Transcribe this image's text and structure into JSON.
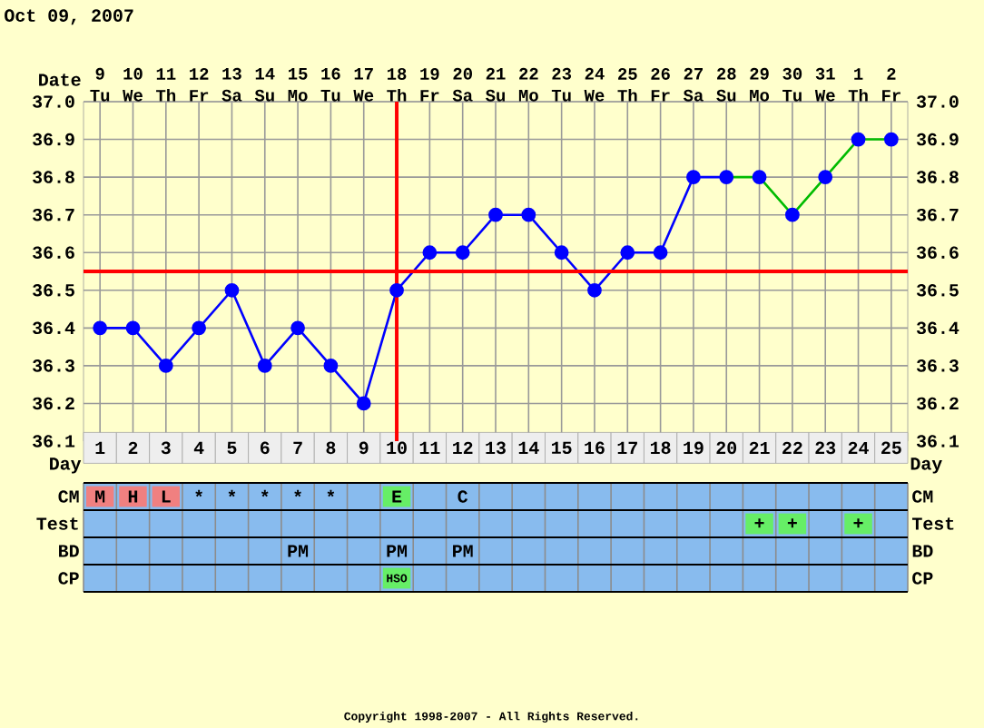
{
  "chart_data": [
    {
      "type": "line",
      "title": "Oct 09, 2007",
      "xlabel": "Day",
      "x2label": "Date",
      "xlim": [
        0.5,
        25.5
      ],
      "xticks": [
        1,
        2,
        3,
        4,
        5,
        6,
        7,
        8,
        9,
        10,
        11,
        12,
        13,
        14,
        15,
        16,
        17,
        18,
        19,
        20,
        21,
        22,
        23,
        24,
        25
      ],
      "x2lim": [
        "2007-10-08T12:00",
        "2007-11-02T12:00"
      ],
      "x2ticks": [
        {
          "value": "2007-10-09",
          "label": "9 Tu"
        },
        {
          "value": "2007-10-10",
          "label": "10 We"
        },
        {
          "value": "2007-10-11",
          "label": "11 Th"
        },
        {
          "value": "2007-10-12",
          "label": "12 Fr"
        },
        {
          "value": "2007-10-13",
          "label": "13 Sa"
        },
        {
          "value": "2007-10-14",
          "label": "14 Su"
        },
        {
          "value": "2007-10-15",
          "label": "15 Mo"
        },
        {
          "value": "2007-10-16",
          "label": "16 Tu"
        },
        {
          "value": "2007-10-17",
          "label": "17 We"
        },
        {
          "value": "2007-10-18",
          "label": "18 Th"
        },
        {
          "value": "2007-10-19",
          "label": "19 Fr"
        },
        {
          "value": "2007-10-20",
          "label": "20 Sa"
        },
        {
          "value": "2007-10-21",
          "label": "21 Su"
        },
        {
          "value": "2007-10-22",
          "label": "22 Mo"
        },
        {
          "value": "2007-10-23",
          "label": "23 Tu"
        },
        {
          "value": "2007-10-24",
          "label": "24 We"
        },
        {
          "value": "2007-10-25",
          "label": "25 Th"
        },
        {
          "value": "2007-10-26",
          "label": "26 Fr"
        },
        {
          "value": "2007-10-27",
          "label": "27 Sa"
        },
        {
          "value": "2007-10-28",
          "label": "28 Su"
        },
        {
          "value": "2007-10-29",
          "label": "29 Mo"
        },
        {
          "value": "2007-10-30",
          "label": "30 Tu"
        },
        {
          "value": "2007-10-31",
          "label": "31 We"
        },
        {
          "value": "2007-11-01",
          "label": "1 Th"
        },
        {
          "value": "2007-11-02",
          "label": "2 Fr"
        }
      ],
      "ylim": [
        36.1,
        37.0
      ],
      "yticks": [
        36.1,
        36.2,
        36.3,
        36.4,
        36.5,
        36.6,
        36.7,
        36.8,
        36.9,
        {
          "value": 37,
          "label": "37.0"
        }
      ],
      "y2lim": [
        36.1,
        37.0
      ],
      "y2ticks": [
        36.1,
        36.2,
        36.3,
        36.4,
        36.5,
        36.6,
        36.7,
        36.8,
        36.9,
        {
          "value": 37,
          "label": "37.0"
        }
      ],
      "grid": true,
      "series": [
        {
          "type": "line",
          "color": "#0000ff",
          "marker": "circle",
          "x": [
            1,
            2,
            3,
            4,
            5,
            6,
            7,
            8,
            9,
            10,
            11,
            12,
            13,
            14,
            15,
            16,
            17,
            18,
            19,
            20
          ],
          "values": [
            36.4,
            36.4,
            36.3,
            36.4,
            36.5,
            36.3,
            36.4,
            36.3,
            36.2,
            36.5,
            36.6,
            36.6,
            36.7,
            36.7,
            36.6,
            36.5,
            36.6,
            36.6,
            36.8,
            36.8
          ]
        },
        {
          "type": "line",
          "color": "#00bb00",
          "marker": "none",
          "x": [
            20,
            21,
            22,
            23,
            24,
            25
          ],
          "values": [
            36.8,
            36.8,
            36.7,
            36.8,
            36.9,
            36.9
          ]
        },
        {
          "type": "scatter",
          "color": "#0000ff",
          "marker": "circle",
          "x": [
            21,
            22,
            23,
            24,
            25
          ],
          "values": [
            36.8,
            36.7,
            36.8,
            36.9,
            36.9
          ]
        }
      ],
      "ref_lines": [
        {
          "axis": "y",
          "value": 36.55,
          "color": "#ff0000"
        },
        {
          "axis": "x",
          "value": 10,
          "color": "#ff0000"
        }
      ],
      "annotations": [
        "Copyright 1998-2007 - All Rights Reserved."
      ]
    },
    {
      "type": "other",
      "categories": [
        null,
        null,
        null,
        null,
        null,
        null,
        null,
        null,
        null,
        null,
        null,
        null,
        null,
        null,
        null,
        null,
        null,
        null,
        null,
        null,
        null,
        null,
        null,
        null,
        null
      ],
      "y_categories": [
        "CM",
        "Test",
        "BD",
        "CP"
      ],
      "y2_categories": [
        "CM",
        "Test",
        "BD",
        "CP"
      ],
      "color": "#88bbee",
      "cell_labels": [
        [
          "M",
          "H",
          "L",
          "*",
          "*",
          "*",
          "*",
          "*",
          null,
          "E",
          null,
          "C",
          null,
          null,
          null,
          null,
          null,
          null,
          null,
          null,
          null,
          null,
          null,
          null,
          null
        ],
        [
          null,
          null,
          null,
          null,
          null,
          null,
          null,
          null,
          null,
          null,
          null,
          null,
          null,
          null,
          null,
          null,
          null,
          null,
          null,
          null,
          "+",
          "+",
          null,
          "+",
          null
        ],
        [
          null,
          null,
          null,
          null,
          null,
          null,
          "PM",
          null,
          null,
          "PM",
          null,
          "PM",
          null,
          null,
          null,
          null,
          null,
          null,
          null,
          null,
          null,
          null,
          null,
          null,
          null
        ],
        [
          null,
          null,
          null,
          null,
          null,
          null,
          null,
          null,
          null,
          "HSO",
          null,
          null,
          null,
          null,
          null,
          null,
          null,
          null,
          null,
          null,
          null,
          null,
          null,
          null,
          null
        ]
      ],
      "colors": [
        [
          "#f08080",
          "#f08080",
          "#f08080",
          null,
          null,
          null,
          null,
          null,
          null,
          "#66ee66",
          null,
          null,
          null,
          null,
          null,
          null,
          null,
          null,
          null,
          null,
          null,
          null,
          null,
          null,
          null
        ],
        [
          null,
          null,
          null,
          null,
          null,
          null,
          null,
          null,
          null,
          null,
          null,
          null,
          null,
          null,
          null,
          null,
          null,
          null,
          null,
          null,
          "#66ee66",
          "#66ee66",
          null,
          "#66ee66",
          null
        ],
        [
          null,
          null,
          null,
          null,
          null,
          null,
          null,
          null,
          null,
          null,
          null,
          null,
          null,
          null,
          null,
          null,
          null,
          null,
          null,
          null,
          null,
          null,
          null,
          null,
          null
        ],
        [
          null,
          null,
          null,
          null,
          null,
          null,
          null,
          null,
          null,
          "#66ee66",
          null,
          null,
          null,
          null,
          null,
          null,
          null,
          null,
          null,
          null,
          null,
          null,
          null,
          null,
          null
        ]
      ]
    }
  ]
}
